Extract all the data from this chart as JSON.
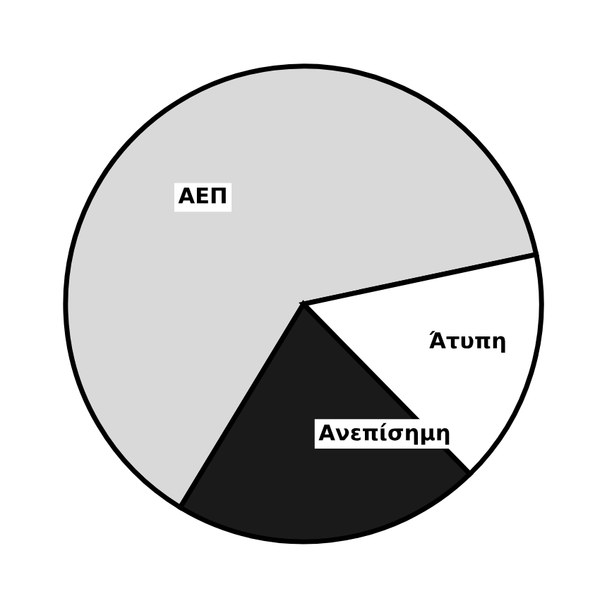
{
  "chart_data": {
    "type": "pie",
    "categories": [
      "ΑΕΠ",
      "Ανεπίσημη",
      "Άτυπη"
    ],
    "values": [
      63,
      21,
      16
    ],
    "colors": [
      "#d9d9d9",
      "#1a1a1a",
      "#ffffff"
    ]
  }
}
